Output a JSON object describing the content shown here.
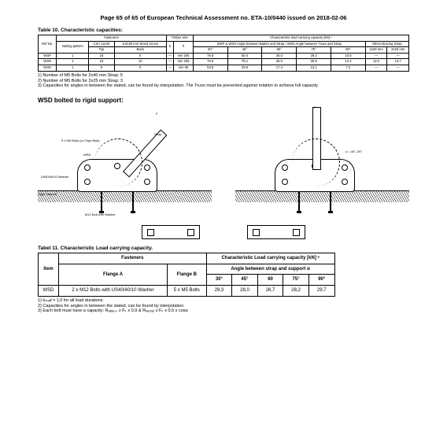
{
  "header": "Page 65 of 65 of European Technical Assessment no. ETA-10/0440 issued on 2018-02-06",
  "table10": {
    "title": "Table 10. Characteristic capacities:",
    "group_headers": [
      "",
      "Fasteners",
      "Timber size",
      "Characteristic load carrying capacity [kN] ᵃ"
    ],
    "sub_headers": [
      "Ref No.",
      "Nailing pattern",
      "CSA 12x40",
      "5.0x39 mm Wood Screw",
      "b",
      "h",
      "WSP & WSN Angle between Batten and Strap / WSN Angle between Truss and Strap",
      "When Bracing Strap"
    ],
    "angle_cols": [
      "30°",
      "45°",
      "60°",
      "75°",
      "90°",
      "2x30 mm",
      "2x25 mm"
    ],
    "row_head": [
      "Code",
      "Top",
      "Back",
      "40°",
      "mm",
      "mm"
    ],
    "rows": [
      [
        "WSP",
        "1",
        "18",
        "0",
        "—",
        "min 195",
        "76.6",
        "60.4",
        "35.0",
        "28.2",
        "10.5",
        "—",
        "—"
      ],
      [
        "WSN",
        "1",
        "18",
        "10",
        "—",
        "min 195",
        "76.6",
        "78.1",
        "35.0",
        "30.9",
        "12.4",
        "12.0",
        "13.7"
      ],
      [
        "WSD",
        "1",
        "9",
        "0",
        "—",
        "min 95",
        "53.8",
        "29.0",
        "17.4",
        "13.1",
        "7.2",
        "—",
        "—"
      ]
    ],
    "notes": [
      "1) Number of M5 Bolts for 2x40 mm Strap: 5",
      "2) Number of M5 Bolts for 2x25 mm Strap: 3",
      "3) Capacities for angles in between the stated, can be found by interpolation. The Truss must be prevented against rotation to achieve full capacity."
    ]
  },
  "section2_title": "WSD bolted to rigid support:",
  "diagram_labels": {
    "l1_a": "5 x M5 Bolts (or Clips+Bolt)",
    "l1_b": "WSD",
    "l1_c": "U540/40/10 Washer",
    "l1_d": "Rigid Support",
    "l1_e": "M12 Bolt with Washer",
    "l1_f": "Strap",
    "l2_a": "α = 30°–90°",
    "l2_f": "F"
  },
  "table11": {
    "title": "Tabel 11. Characteristic Load carrying capacity.",
    "group1": "Fasteners",
    "group2": "Characteristic Load carrying capacity [kN] ᵃ",
    "sub2": "Angle between strap and support α",
    "cols": [
      "Item",
      "Flange A",
      "Flange B",
      "30°",
      "45°",
      "60",
      "75°",
      "90°"
    ],
    "rows": [
      [
        "WSD",
        "2 x M12 Bolts with US40/40/10 Washer",
        "5 x M5 Bolts",
        "29,3",
        "28,0",
        "26,7",
        "28,2",
        "29,7"
      ]
    ],
    "notes": [
      "1) kₘₒ𝒹 = 1,0 for all load durations.",
      "2) Capacities for angles in between the stated, can be found by interpolation.",
      "3) Each bolt must have a capacity: Rₐₓᵢₐₗ,ₖ ≥ Fₖ x 0,9 & Rₗₐₜₑᵣₐₗ ≥ Fₖ x 0,5 x cosα"
    ]
  },
  "colors": {
    "line": "#000000",
    "bg": "#ffffff"
  }
}
